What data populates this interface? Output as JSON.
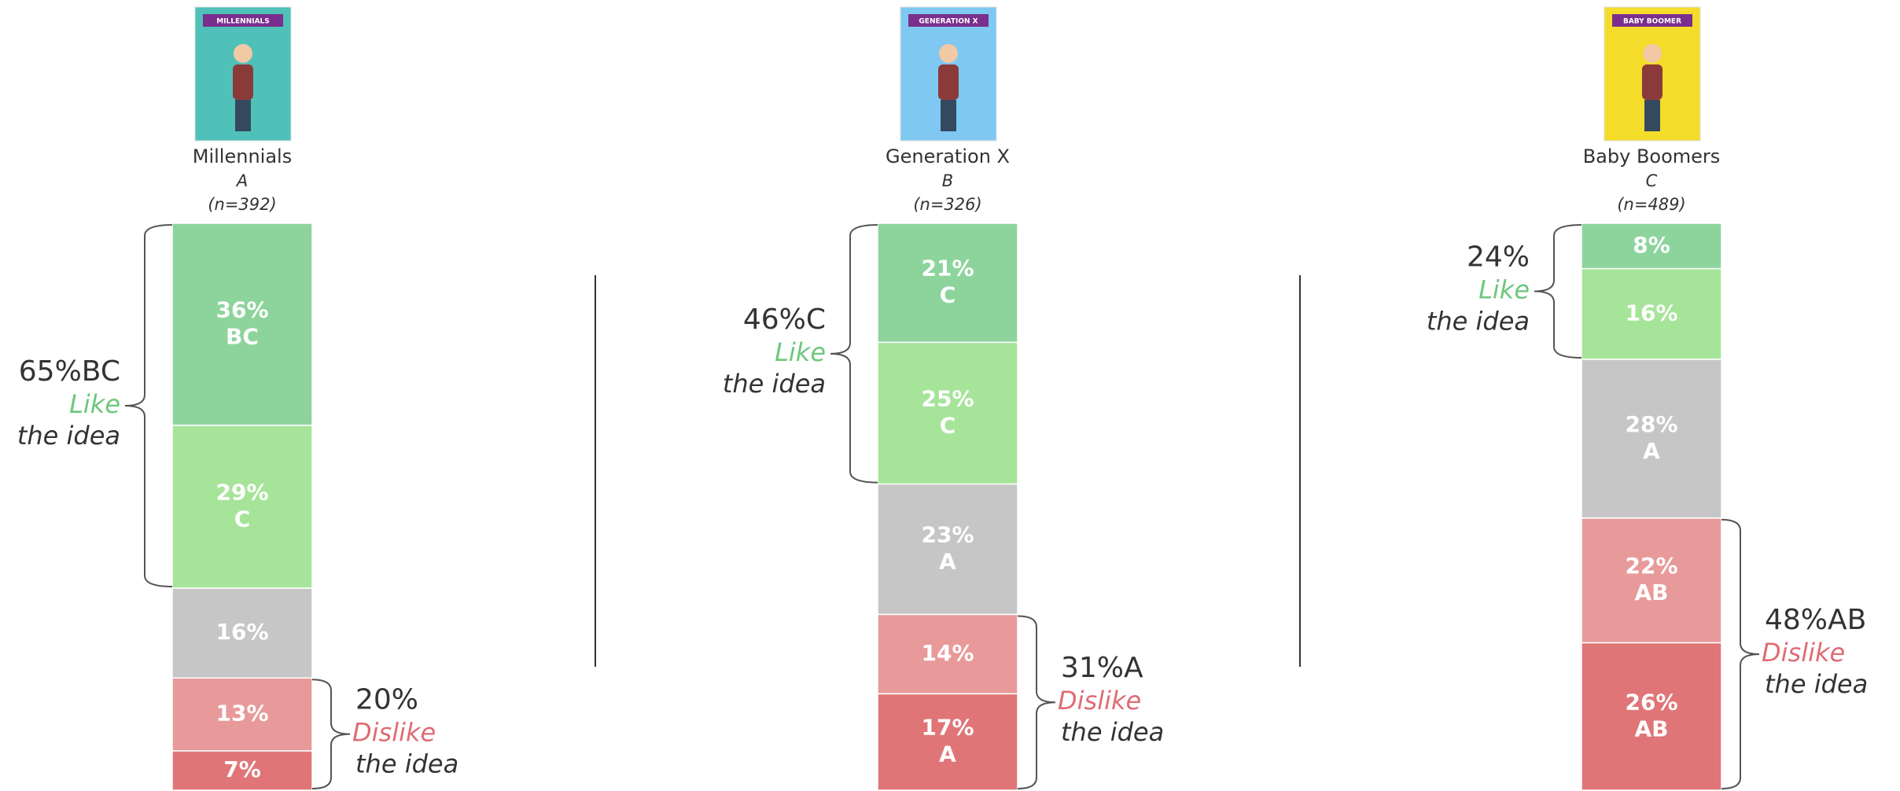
{
  "chart_data": [
    {
      "type": "stacked-bar",
      "poster_title": "MILLENNIALS",
      "title": "Millennials",
      "subtitle": "A",
      "sample": "(n=392)",
      "values": [
        36,
        29,
        16,
        13,
        7
      ],
      "value_labels": [
        "36%",
        "29%",
        "16%",
        "13%",
        "7%"
      ],
      "letters": [
        "BC",
        "C",
        null,
        null,
        null
      ],
      "colors": [
        "#8dd49c",
        "#a6e49a",
        "#c6c6c6",
        "#e89a9a",
        "#e07578"
      ],
      "poster_color": "#4fc1b8",
      "like": {
        "value": 65,
        "label": "65%BC",
        "word": "Like",
        "rest": "the idea"
      },
      "dislike": {
        "value": 20,
        "label": "20%",
        "word": "Dislike",
        "rest": "the idea"
      }
    },
    {
      "type": "stacked-bar",
      "poster_title": "GENERATION X",
      "title": "Generation X",
      "subtitle": "B",
      "sample": "(n=326)",
      "values": [
        21,
        25,
        23,
        14,
        17
      ],
      "value_labels": [
        "21%",
        "25%",
        "23%",
        "14%",
        "17%"
      ],
      "letters": [
        "C",
        "C",
        "A",
        null,
        "A"
      ],
      "colors": [
        "#8dd49c",
        "#a6e49a",
        "#c6c6c6",
        "#e89a9a",
        "#e07578"
      ],
      "poster_color": "#7fc8f2",
      "like": {
        "value": 46,
        "label": "46%C",
        "word": "Like",
        "rest": "the idea"
      },
      "dislike": {
        "value": 31,
        "label": "31%A",
        "word": "Dislike",
        "rest": "the idea"
      }
    },
    {
      "type": "stacked-bar",
      "poster_title": "BABY BOOMER",
      "title": "Baby Boomers",
      "subtitle": "C",
      "sample": "(n=489)",
      "values": [
        8,
        16,
        28,
        22,
        26
      ],
      "value_labels": [
        "8%",
        "16%",
        "28%",
        "22%",
        "26%"
      ],
      "letters": [
        null,
        null,
        "A",
        "AB",
        "AB"
      ],
      "colors": [
        "#8dd49c",
        "#a6e49a",
        "#c6c6c6",
        "#e89a9a",
        "#e07578"
      ],
      "poster_color": "#f5dc2a",
      "like": {
        "value": 24,
        "label": "24%",
        "word": "Like",
        "rest": "the idea"
      },
      "dislike": {
        "value": 48,
        "label": "48%AB",
        "word": "Dislike",
        "rest": "the idea"
      }
    }
  ]
}
